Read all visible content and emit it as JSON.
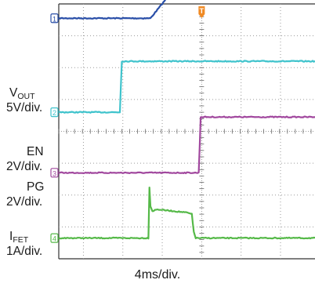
{
  "chart_data": {
    "type": "line",
    "title": "",
    "x_unit": "ms",
    "x_range": [
      -14.5,
      11.5
    ],
    "timebase": "4ms/div.",
    "trigger_marker": "T",
    "grid": true,
    "channels": [
      {
        "id": "1",
        "name_main": "V",
        "name_sub": "OUT",
        "scale": "5V/div.",
        "color": "#2a4fa8",
        "ground_div": 0.45,
        "points": [
          [
            -14.5,
            0
          ],
          [
            -5.2,
            0
          ],
          [
            0.4,
            10.15
          ],
          [
            11.5,
            10.15
          ]
        ]
      },
      {
        "id": "2",
        "name_main": "EN",
        "name_sub": "",
        "scale": "2V/div.",
        "color": "#3fc3cc",
        "ground_div": 3.4,
        "points": [
          [
            -14.5,
            0
          ],
          [
            -8.3,
            0
          ],
          [
            -8.1,
            3.2
          ],
          [
            11.5,
            3.2
          ]
        ]
      },
      {
        "id": "3",
        "name_main": "PG",
        "name_sub": "",
        "scale": "2V/div.",
        "color": "#a1489e",
        "ground_div": 5.3,
        "points": [
          [
            -14.5,
            0
          ],
          [
            -0.3,
            0
          ],
          [
            -0.1,
            3.5
          ],
          [
            11.5,
            3.5
          ]
        ]
      },
      {
        "id": "4",
        "name_main": "I",
        "name_sub": "FET",
        "scale": "1A/div.",
        "color": "#55b948",
        "ground_div": 7.35,
        "points": [
          [
            -14.5,
            0
          ],
          [
            -5.4,
            0
          ],
          [
            -5.3,
            1.6
          ],
          [
            -5.2,
            1.0
          ],
          [
            -5.0,
            0.85
          ],
          [
            -4.5,
            0.9
          ],
          [
            -3.0,
            0.85
          ],
          [
            -1.5,
            0.8
          ],
          [
            -1.0,
            0.75
          ],
          [
            -0.8,
            0.2
          ],
          [
            -0.6,
            0
          ],
          [
            11.5,
            0
          ]
        ]
      }
    ]
  }
}
